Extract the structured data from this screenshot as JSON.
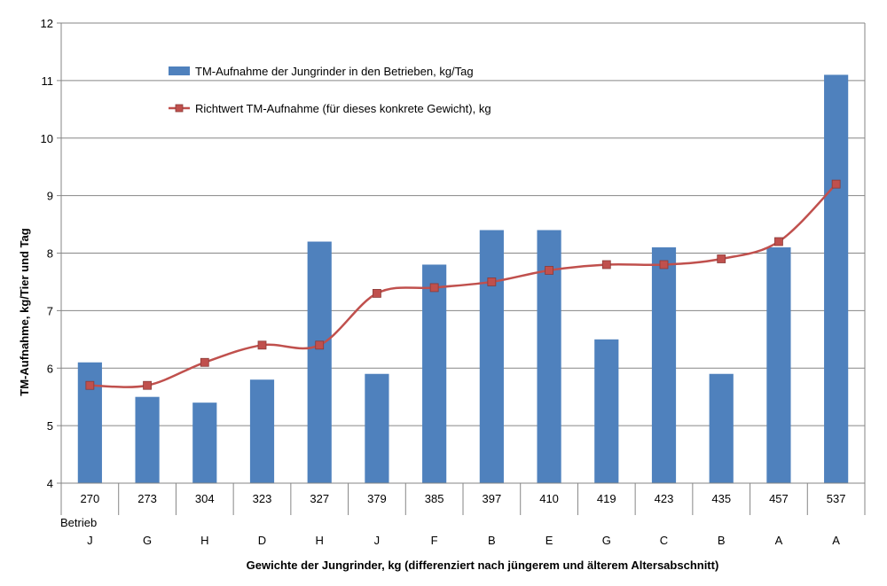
{
  "chart_data": {
    "type": "bar",
    "categories": [
      "270",
      "273",
      "304",
      "323",
      "327",
      "379",
      "385",
      "397",
      "410",
      "419",
      "423",
      "435",
      "457",
      "537"
    ],
    "category_group_label": "Betrieb",
    "category_groups": [
      "J",
      "G",
      "H",
      "D",
      "H",
      "J",
      "F",
      "B",
      "E",
      "G",
      "C",
      "B",
      "A",
      "A"
    ],
    "series": [
      {
        "name": "TM-Aufnahme der Jungrinder in den Betrieben, kg/Tag",
        "type": "bar",
        "color": "#4F81BD",
        "values": [
          6.1,
          5.5,
          5.4,
          5.8,
          8.2,
          5.9,
          7.8,
          8.4,
          8.4,
          6.5,
          8.1,
          5.9,
          8.1,
          11.1
        ]
      },
      {
        "name": "Richtwert TM-Aufnahme (für dieses konkrete Gewicht), kg",
        "type": "line",
        "color": "#C0504D",
        "values": [
          5.7,
          5.7,
          6.1,
          6.4,
          6.4,
          7.3,
          7.4,
          7.5,
          7.7,
          7.8,
          7.8,
          7.9,
          8.2,
          9.2
        ]
      }
    ],
    "ylabel": "TM-Aufnahme, kg/Tier und Tag",
    "xlabel": "Gewichte der Jungrinder, kg (differenziert nach jüngerem und älterem Altersabschnitt)",
    "ylim": [
      4,
      12
    ],
    "yticks": [
      4,
      5,
      6,
      7,
      8,
      9,
      10,
      11,
      12
    ],
    "grid": true,
    "legend_position": "top-center"
  }
}
